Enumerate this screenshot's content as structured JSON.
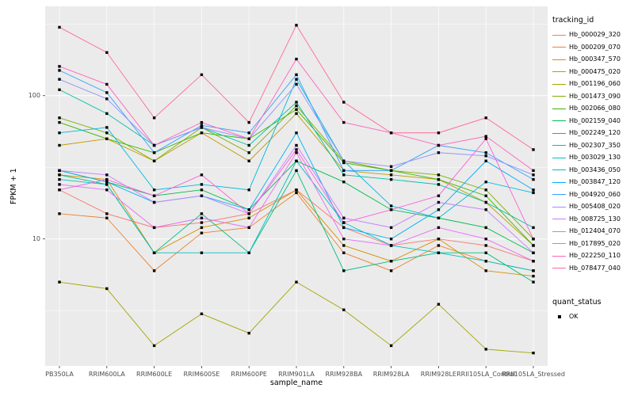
{
  "chart_data": {
    "type": "line",
    "title": "",
    "xlabel": "sample_name",
    "ylabel": "FPKM + 1",
    "y_scale": "log10",
    "ylim": [
      1.3,
      420
    ],
    "grid": true,
    "panel_bg": "#EBEBEB",
    "grid_color": "#FFFFFF",
    "point_color": "#000000",
    "point_shape": "square",
    "legend_position": "right",
    "legend_title": "tracking_id",
    "y_ticks": [
      {
        "value": 10,
        "label": "10"
      },
      {
        "value": 100,
        "label": "100"
      }
    ],
    "y_minor_ticks": [
      3.162,
      31.62,
      316.2
    ],
    "x_categories": [
      "PB350LA",
      "RRIM600LA",
      "RRIM600LE",
      "RRIM600SE",
      "RRIM600PE",
      "RRIM901LA",
      "RRIM928BA",
      "RRIM928LA",
      "RRIM928LE",
      "RRII105LA_Control",
      "RRII105LA_Stressed"
    ],
    "series": [
      {
        "name": "Hb_000029_320",
        "color": "#F8766D",
        "values": [
          22,
          15,
          12,
          13,
          15,
          22,
          12,
          9,
          10,
          9,
          7
        ]
      },
      {
        "name": "Hb_000209_070",
        "color": "#EA8331",
        "values": [
          15,
          14,
          6,
          11,
          12,
          21,
          8,
          6,
          9,
          7,
          6
        ]
      },
      {
        "name": "Hb_000347_570",
        "color": "#D89000",
        "values": [
          28,
          26,
          8,
          12,
          14,
          22,
          9,
          7,
          10,
          6,
          5.5
        ]
      },
      {
        "name": "Hb_000475_020",
        "color": "#C09B00",
        "values": [
          45,
          50,
          35,
          55,
          35,
          75,
          30,
          28,
          26,
          18,
          9
        ]
      },
      {
        "name": "Hb_001196_060",
        "color": "#A3A500",
        "values": [
          5,
          4.5,
          1.8,
          3,
          2.2,
          5,
          3.2,
          1.8,
          3.5,
          1.7,
          1.6
        ]
      },
      {
        "name": "Hb_001473_090",
        "color": "#7CAE00",
        "values": [
          70,
          55,
          35,
          60,
          40,
          85,
          35,
          30,
          28,
          22,
          10
        ]
      },
      {
        "name": "Hb_002066_080",
        "color": "#39B600",
        "values": [
          65,
          50,
          40,
          55,
          50,
          80,
          34,
          30,
          26,
          20,
          9
        ]
      },
      {
        "name": "Hb_002159_040",
        "color": "#00BB4E",
        "values": [
          30,
          25,
          20,
          22,
          16,
          35,
          25,
          16,
          14,
          12,
          8
        ]
      },
      {
        "name": "Hb_002249_120",
        "color": "#00BF7D",
        "values": [
          28,
          24,
          8,
          15,
          8,
          30,
          6,
          7,
          8,
          8,
          5
        ]
      },
      {
        "name": "Hb_002307_350",
        "color": "#00C1A3",
        "values": [
          110,
          75,
          45,
          60,
          45,
          90,
          28,
          26,
          24,
          18,
          12
        ]
      },
      {
        "name": "Hb_003029_130",
        "color": "#00BFC4",
        "values": [
          26,
          24,
          8,
          8,
          8,
          35,
          13,
          9,
          8,
          7,
          6
        ]
      },
      {
        "name": "Hb_003436_050",
        "color": "#00BAE0",
        "values": [
          55,
          60,
          22,
          24,
          22,
          130,
          35,
          17,
          14,
          25,
          21
        ]
      },
      {
        "name": "Hb_003847_120",
        "color": "#00B0F6",
        "values": [
          30,
          25,
          18,
          20,
          16,
          55,
          12,
          10,
          16,
          35,
          22
        ]
      },
      {
        "name": "Hb_004920_060",
        "color": "#35A2FF",
        "values": [
          150,
          105,
          40,
          62,
          55,
          140,
          30,
          30,
          45,
          40,
          26
        ]
      },
      {
        "name": "Hb_005408_020",
        "color": "#9590FF",
        "values": [
          130,
          95,
          45,
          60,
          50,
          120,
          35,
          32,
          40,
          38,
          28
        ]
      },
      {
        "name": "Hb_008725_130",
        "color": "#C77CFF",
        "values": [
          30,
          28,
          18,
          20,
          15,
          45,
          14,
          12,
          18,
          16,
          8
        ]
      },
      {
        "name": "Hb_012404_070",
        "color": "#E76BF3",
        "values": [
          24,
          22,
          12,
          14,
          12,
          40,
          10,
          9,
          12,
          10,
          7
        ]
      },
      {
        "name": "Hb_017895_020",
        "color": "#FA62DB",
        "values": [
          22,
          26,
          20,
          28,
          15,
          42,
          13,
          16,
          20,
          50,
          10
        ]
      },
      {
        "name": "Hb_022250_110",
        "color": "#FF62BC",
        "values": [
          160,
          120,
          45,
          65,
          50,
          180,
          65,
          55,
          45,
          52,
          30
        ]
      },
      {
        "name": "Hb_078477_040",
        "color": "#FF6A98",
        "values": [
          300,
          200,
          70,
          140,
          65,
          310,
          90,
          55,
          55,
          70,
          42
        ]
      }
    ],
    "point_legend": {
      "title": "quant_status",
      "items": [
        {
          "label": "OK",
          "shape": "square",
          "color": "#000000"
        }
      ]
    }
  }
}
